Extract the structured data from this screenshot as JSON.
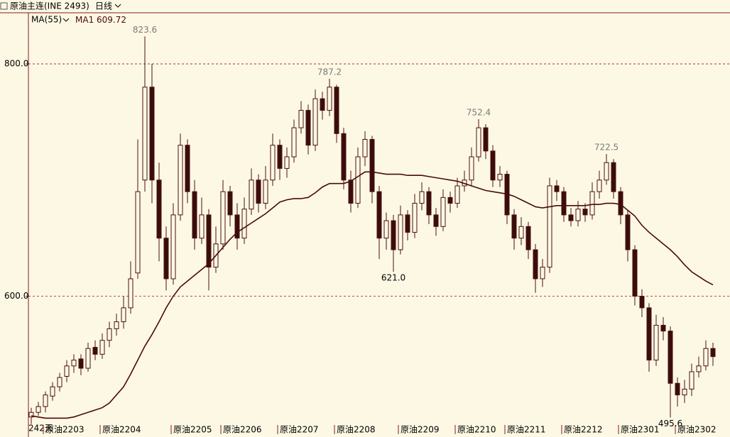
{
  "chart_data": {
    "type": "candlestick",
    "title": "原油主连(INE 2493)",
    "period": "日线",
    "indicator": "MA(55)",
    "day_count": "242天",
    "up_color": "#fdf8e4",
    "down_color": "#3a0d0d",
    "edge_color": "#4a1010",
    "ylim": [
      480,
      844
    ],
    "yticks": [
      {
        "value": 600,
        "label": "600.0"
      },
      {
        "value": 800,
        "label": "800.0"
      }
    ],
    "grid": true,
    "categories": [
      null,
      null,
      "原油2203",
      null,
      null,
      null,
      null,
      null,
      null,
      null,
      "原油2204",
      null,
      null,
      null,
      null,
      null,
      null,
      null,
      null,
      null,
      "原油2205",
      null,
      null,
      null,
      null,
      null,
      null,
      "原油2206",
      null,
      null,
      null,
      null,
      null,
      null,
      null,
      "原油2207",
      null,
      null,
      null,
      null,
      null,
      null,
      null,
      "原油2208",
      null,
      null,
      null,
      null,
      null,
      null,
      null,
      null,
      "原油2209",
      null,
      null,
      null,
      null,
      null,
      null,
      null,
      "原油2210",
      null,
      null,
      null,
      null,
      null,
      null,
      "原油2211",
      null,
      null,
      null,
      null,
      null,
      null,
      null,
      "原油2212",
      null,
      null,
      null,
      null,
      null,
      null,
      null,
      "原油2301",
      null,
      null,
      null,
      null,
      null,
      null,
      null,
      "原油2302",
      null,
      null,
      null,
      null,
      null
    ],
    "ohlc": [
      [
        496,
        504,
        490,
        500
      ],
      [
        500,
        509,
        497,
        505
      ],
      [
        505,
        518,
        500,
        515
      ],
      [
        514,
        526,
        510,
        522
      ],
      [
        522,
        534,
        518,
        530
      ],
      [
        531,
        545,
        526,
        540
      ],
      [
        540,
        550,
        534,
        545
      ],
      [
        546,
        550,
        532,
        538
      ],
      [
        538,
        560,
        535,
        555
      ],
      [
        556,
        562,
        545,
        550
      ],
      [
        550,
        568,
        546,
        562
      ],
      [
        562,
        578,
        556,
        572
      ],
      [
        572,
        585,
        566,
        578
      ],
      [
        578,
        600,
        572,
        590
      ],
      [
        590,
        630,
        585,
        615
      ],
      [
        620,
        735,
        615,
        690
      ],
      [
        700,
        823.6,
        690,
        780
      ],
      [
        780,
        800,
        680,
        700
      ],
      [
        700,
        715,
        630,
        650
      ],
      [
        650,
        660,
        605,
        615
      ],
      [
        615,
        680,
        610,
        670
      ],
      [
        670,
        740,
        665,
        730
      ],
      [
        730,
        735,
        680,
        690
      ],
      [
        690,
        700,
        640,
        650
      ],
      [
        650,
        685,
        645,
        670
      ],
      [
        670,
        675,
        605,
        625
      ],
      [
        625,
        660,
        620,
        645
      ],
      [
        645,
        700,
        640,
        690
      ],
      [
        690,
        695,
        660,
        670
      ],
      [
        670,
        680,
        640,
        650
      ],
      [
        650,
        685,
        645,
        675
      ],
      [
        675,
        710,
        670,
        700
      ],
      [
        700,
        705,
        672,
        680
      ],
      [
        680,
        712,
        675,
        700
      ],
      [
        700,
        740,
        695,
        730
      ],
      [
        730,
        735,
        700,
        710
      ],
      [
        710,
        728,
        702,
        720
      ],
      [
        720,
        752,
        715,
        745
      ],
      [
        745,
        768,
        740,
        760
      ],
      [
        760,
        765,
        722,
        730
      ],
      [
        730,
        778,
        725,
        770
      ],
      [
        770,
        776,
        752,
        760
      ],
      [
        760,
        787.2,
        755,
        780
      ],
      [
        780,
        782,
        732,
        740
      ],
      [
        740,
        745,
        692,
        700
      ],
      [
        700,
        708,
        672,
        680
      ],
      [
        680,
        728,
        676,
        720
      ],
      [
        720,
        742,
        712,
        735
      ],
      [
        735,
        738,
        680,
        690
      ],
      [
        690,
        695,
        632,
        650
      ],
      [
        650,
        672,
        640,
        665
      ],
      [
        665,
        670,
        621.0,
        640
      ],
      [
        640,
        678,
        636,
        670
      ],
      [
        670,
        674,
        648,
        655
      ],
      [
        655,
        688,
        650,
        680
      ],
      [
        680,
        698,
        674,
        690
      ],
      [
        690,
        694,
        662,
        670
      ],
      [
        670,
        676,
        652,
        660
      ],
      [
        660,
        692,
        656,
        685
      ],
      [
        685,
        690,
        672,
        680
      ],
      [
        680,
        702,
        676,
        695
      ],
      [
        695,
        708,
        690,
        700
      ],
      [
        700,
        728,
        695,
        720
      ],
      [
        720,
        752.4,
        716,
        745
      ],
      [
        745,
        748,
        718,
        725
      ],
      [
        725,
        730,
        694,
        700
      ],
      [
        700,
        712,
        694,
        705
      ],
      [
        705,
        708,
        662,
        670
      ],
      [
        670,
        675,
        640,
        650
      ],
      [
        650,
        668,
        644,
        660
      ],
      [
        660,
        664,
        632,
        640
      ],
      [
        640,
        645,
        603,
        615
      ],
      [
        615,
        632,
        608,
        625
      ],
      [
        625,
        702,
        620,
        695
      ],
      [
        695,
        700,
        682,
        690
      ],
      [
        690,
        694,
        664,
        670
      ],
      [
        670,
        676,
        660,
        665
      ],
      [
        665,
        682,
        660,
        675
      ],
      [
        675,
        680,
        664,
        670
      ],
      [
        670,
        698,
        666,
        690
      ],
      [
        690,
        708,
        684,
        700
      ],
      [
        700,
        722.5,
        696,
        715
      ],
      [
        715,
        718,
        684,
        690
      ],
      [
        690,
        694,
        662,
        670
      ],
      [
        670,
        674,
        630,
        640
      ],
      [
        640,
        644,
        592,
        600
      ],
      [
        600,
        606,
        582,
        590
      ],
      [
        590,
        594,
        535,
        545
      ],
      [
        545,
        584,
        540,
        575
      ],
      [
        575,
        582,
        562,
        570
      ],
      [
        570,
        574,
        495.6,
        525
      ],
      [
        525,
        530,
        505,
        515
      ],
      [
        515,
        528,
        508,
        520
      ],
      [
        520,
        542,
        514,
        535
      ],
      [
        535,
        548,
        530,
        540
      ],
      [
        540,
        562,
        536,
        555
      ],
      [
        555,
        560,
        540,
        548
      ]
    ],
    "high_labels": [
      null,
      null,
      null,
      null,
      null,
      null,
      null,
      null,
      null,
      null,
      null,
      null,
      null,
      null,
      null,
      null,
      "823.6",
      null,
      null,
      null,
      null,
      null,
      null,
      null,
      null,
      null,
      null,
      null,
      null,
      null,
      null,
      null,
      null,
      null,
      null,
      null,
      null,
      null,
      null,
      null,
      null,
      null,
      "787.2",
      null,
      null,
      null,
      null,
      null,
      null,
      null,
      null,
      null,
      null,
      null,
      null,
      null,
      null,
      null,
      null,
      null,
      null,
      null,
      null,
      "752.4",
      null,
      null,
      null,
      null,
      null,
      null,
      null,
      null,
      null,
      null,
      null,
      null,
      null,
      null,
      null,
      null,
      null,
      "722.5",
      null,
      null,
      null,
      null,
      null,
      null,
      null,
      null,
      null,
      null,
      null,
      null,
      null,
      null,
      null
    ],
    "low_labels": [
      null,
      null,
      null,
      null,
      null,
      null,
      null,
      null,
      null,
      null,
      null,
      null,
      null,
      null,
      null,
      null,
      null,
      null,
      null,
      null,
      null,
      null,
      null,
      null,
      null,
      null,
      null,
      null,
      null,
      null,
      null,
      null,
      null,
      null,
      null,
      null,
      null,
      null,
      null,
      null,
      null,
      null,
      null,
      null,
      null,
      null,
      null,
      null,
      null,
      null,
      null,
      "621.0",
      null,
      null,
      null,
      null,
      null,
      null,
      null,
      null,
      null,
      null,
      null,
      null,
      null,
      null,
      null,
      null,
      null,
      null,
      null,
      null,
      null,
      null,
      null,
      null,
      null,
      null,
      null,
      null,
      null,
      null,
      null,
      null,
      null,
      null,
      null,
      null,
      null,
      null,
      "495.6",
      null,
      null,
      null,
      null,
      null,
      null
    ],
    "ma": {
      "name": "MA1",
      "color": "#4a0a0a",
      "values": [
        497,
        496,
        495,
        495,
        495,
        495,
        496,
        498,
        500,
        502,
        504,
        508,
        515,
        522,
        533,
        545,
        557,
        567,
        578,
        590,
        600,
        608,
        613,
        618,
        623,
        628,
        635,
        642,
        649,
        655,
        659,
        663,
        667,
        671,
        676,
        681,
        683,
        684,
        684,
        685,
        689,
        694,
        697,
        697,
        697,
        699,
        703,
        707,
        707,
        706,
        705,
        705,
        705,
        704,
        704,
        704,
        703,
        702,
        701,
        700,
        699,
        697,
        695,
        693,
        691,
        690,
        689,
        688,
        686,
        683,
        680,
        677,
        676,
        677,
        678,
        678,
        678,
        678,
        678,
        679,
        679,
        680,
        680,
        679,
        674,
        669,
        661,
        655,
        650,
        645,
        640,
        634,
        627,
        621,
        617,
        613,
        609.72
      ]
    }
  }
}
